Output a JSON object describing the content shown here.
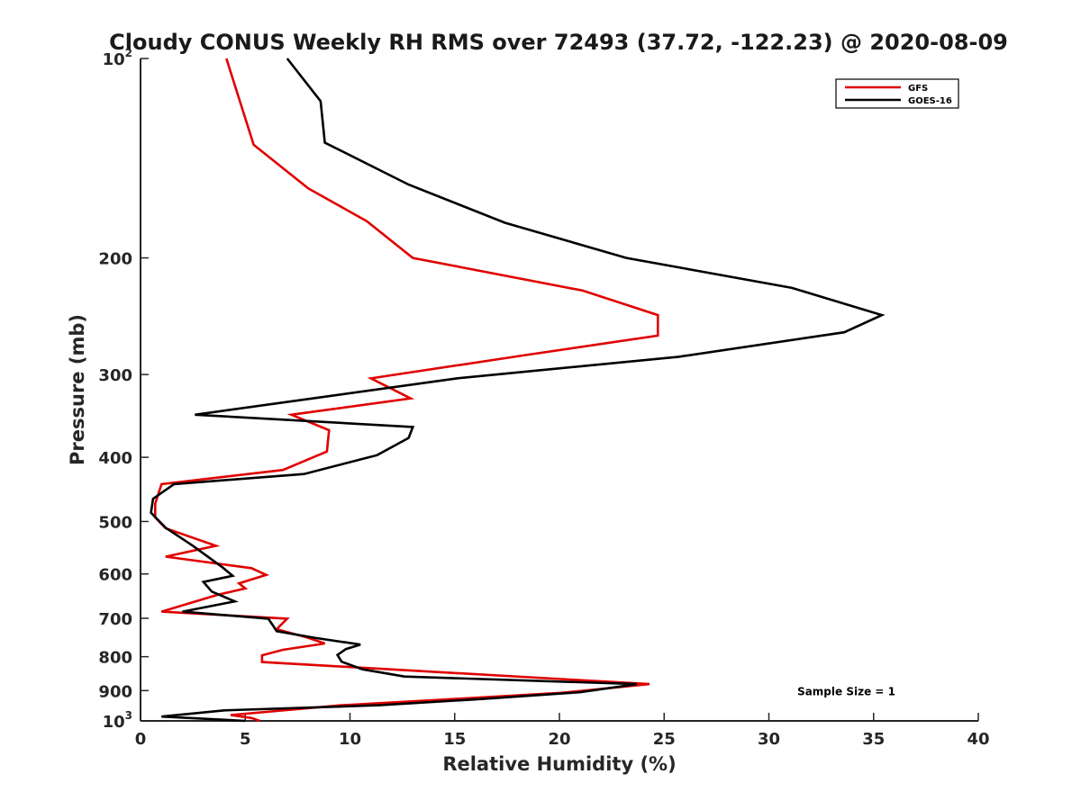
{
  "chart_data": {
    "type": "line",
    "title": "Cloudy CONUS Weekly RH RMS over 72493 (37.72, -122.23) @ 2020-08-09",
    "xlabel": "Relative Humidity (%)",
    "ylabel": "Pressure (mb)",
    "xlim": [
      0,
      40
    ],
    "ylim": [
      100,
      1000
    ],
    "yscale": "log",
    "y_reversed": true,
    "xticks": [
      0,
      5,
      10,
      15,
      20,
      25,
      30,
      35,
      40
    ],
    "yticks": [
      {
        "value": 100,
        "label": "10",
        "sup": "2"
      },
      {
        "value": 200,
        "label": "200",
        "sup": ""
      },
      {
        "value": 300,
        "label": "300",
        "sup": ""
      },
      {
        "value": 400,
        "label": "400",
        "sup": ""
      },
      {
        "value": 500,
        "label": "500",
        "sup": ""
      },
      {
        "value": 600,
        "label": "600",
        "sup": ""
      },
      {
        "value": 700,
        "label": "700",
        "sup": ""
      },
      {
        "value": 800,
        "label": "800",
        "sup": ""
      },
      {
        "value": 900,
        "label": "900",
        "sup": ""
      },
      {
        "value": 1000,
        "label": "10",
        "sup": "3"
      }
    ],
    "grid": false,
    "legend_position": "top-right",
    "series": [
      {
        "name": "GFS",
        "color": "#e00000",
        "points": [
          [
            4.1,
            100
          ],
          [
            5.4,
            135
          ],
          [
            8.0,
            157
          ],
          [
            10.8,
            176
          ],
          [
            13.0,
            200
          ],
          [
            21.1,
            224
          ],
          [
            24.7,
            244
          ],
          [
            24.7,
            262
          ],
          [
            18.5,
            280
          ],
          [
            11.0,
            304
          ],
          [
            12.9,
            326
          ],
          [
            7.2,
            345
          ],
          [
            9.0,
            364
          ],
          [
            8.9,
            392
          ],
          [
            6.8,
            418
          ],
          [
            1.0,
            439
          ],
          [
            0.7,
            470
          ],
          [
            0.7,
            493
          ],
          [
            1.2,
            512
          ],
          [
            3.6,
            544
          ],
          [
            1.2,
            565
          ],
          [
            5.3,
            588
          ],
          [
            6.0,
            602
          ],
          [
            4.7,
            620
          ],
          [
            5.0,
            631
          ],
          [
            3.7,
            645
          ],
          [
            1.0,
            684
          ],
          [
            7.0,
            701
          ],
          [
            6.5,
            727
          ],
          [
            8.0,
            749
          ],
          [
            8.8,
            764
          ],
          [
            6.8,
            781
          ],
          [
            5.8,
            796
          ],
          [
            5.8,
            815
          ],
          [
            24.3,
            880
          ],
          [
            20.1,
            907
          ],
          [
            14.1,
            930
          ],
          [
            9.6,
            947
          ],
          [
            4.3,
            980
          ],
          [
            5.3,
            990
          ],
          [
            5.7,
            1000
          ]
        ]
      },
      {
        "name": "GOES-16",
        "color": "#000000",
        "points": [
          [
            7.0,
            100
          ],
          [
            8.6,
            116
          ],
          [
            8.8,
            134
          ],
          [
            12.8,
            155
          ],
          [
            17.4,
            177
          ],
          [
            23.2,
            200
          ],
          [
            31.1,
            222
          ],
          [
            35.4,
            244
          ],
          [
            33.6,
            259
          ],
          [
            25.7,
            282
          ],
          [
            15.1,
            304
          ],
          [
            7.9,
            327
          ],
          [
            2.6,
            345
          ],
          [
            13.0,
            360
          ],
          [
            12.8,
            374
          ],
          [
            11.3,
            397
          ],
          [
            7.8,
            424
          ],
          [
            1.6,
            439
          ],
          [
            0.6,
            462
          ],
          [
            0.5,
            485
          ],
          [
            1.2,
            511
          ],
          [
            2.5,
            544
          ],
          [
            3.9,
            586
          ],
          [
            4.4,
            604
          ],
          [
            3.0,
            617
          ],
          [
            3.4,
            638
          ],
          [
            4.5,
            660
          ],
          [
            2.0,
            684
          ],
          [
            6.1,
            701
          ],
          [
            6.3,
            716
          ],
          [
            6.5,
            732
          ],
          [
            8.3,
            749
          ],
          [
            10.5,
            767
          ],
          [
            9.8,
            779
          ],
          [
            9.4,
            795
          ],
          [
            9.6,
            814
          ],
          [
            10.6,
            836
          ],
          [
            12.6,
            857
          ],
          [
            23.7,
            880
          ],
          [
            21.0,
            905
          ],
          [
            16.2,
            927
          ],
          [
            11.4,
            947
          ],
          [
            4.0,
            964
          ],
          [
            1.0,
            985
          ],
          [
            5.0,
            1000
          ]
        ]
      }
    ],
    "annotations": [
      {
        "text": "Sample Size = 1",
        "x": 33.7,
        "y": 900
      }
    ]
  }
}
